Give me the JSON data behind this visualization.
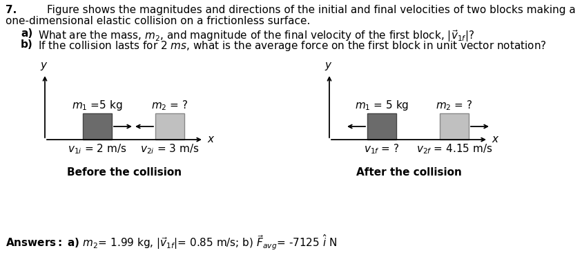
{
  "bg_color": "#ffffff",
  "block1_color": "#6b6b6b",
  "block2_color": "#c0c0c0",
  "block1_edge": "#444444",
  "block2_edge": "#888888",
  "line1": "7.",
  "line2": "Figure shows the magnitudes and directions of the initial and final velocities of two blocks making a",
  "line3": "one-dimensional elastic collision on a frictionless surface.",
  "parta_label": "a)",
  "parta_text1": "What are the mass, ",
  "parta_m2": "m",
  "parta_text2": ", and magnitude of the final velocity of the first block, |",
  "parta_v": "v",
  "parta_text3": "|?",
  "partb_label": "b)",
  "partb_text1": "If the collision lasts for 2 ",
  "partb_ms": "ms",
  "partb_text2": ", what is the average force on the first block in unit vector notation?",
  "before_title": "Before the collision",
  "after_title": "After the collision",
  "m1_before": "m",
  "m2_before": "m",
  "v1i_label": "v",
  "v2i_label": "v",
  "v1f_label": "v",
  "v2f_label": "v",
  "ans_bold": "Answers:",
  "ans_a": " a) ",
  "ans_m2": "m",
  "ans_v1f": "v",
  "ans_Favg": "F",
  "ans_rest": "= -7125 ",
  "ans_ihat": "i",
  "ans_N": " N"
}
